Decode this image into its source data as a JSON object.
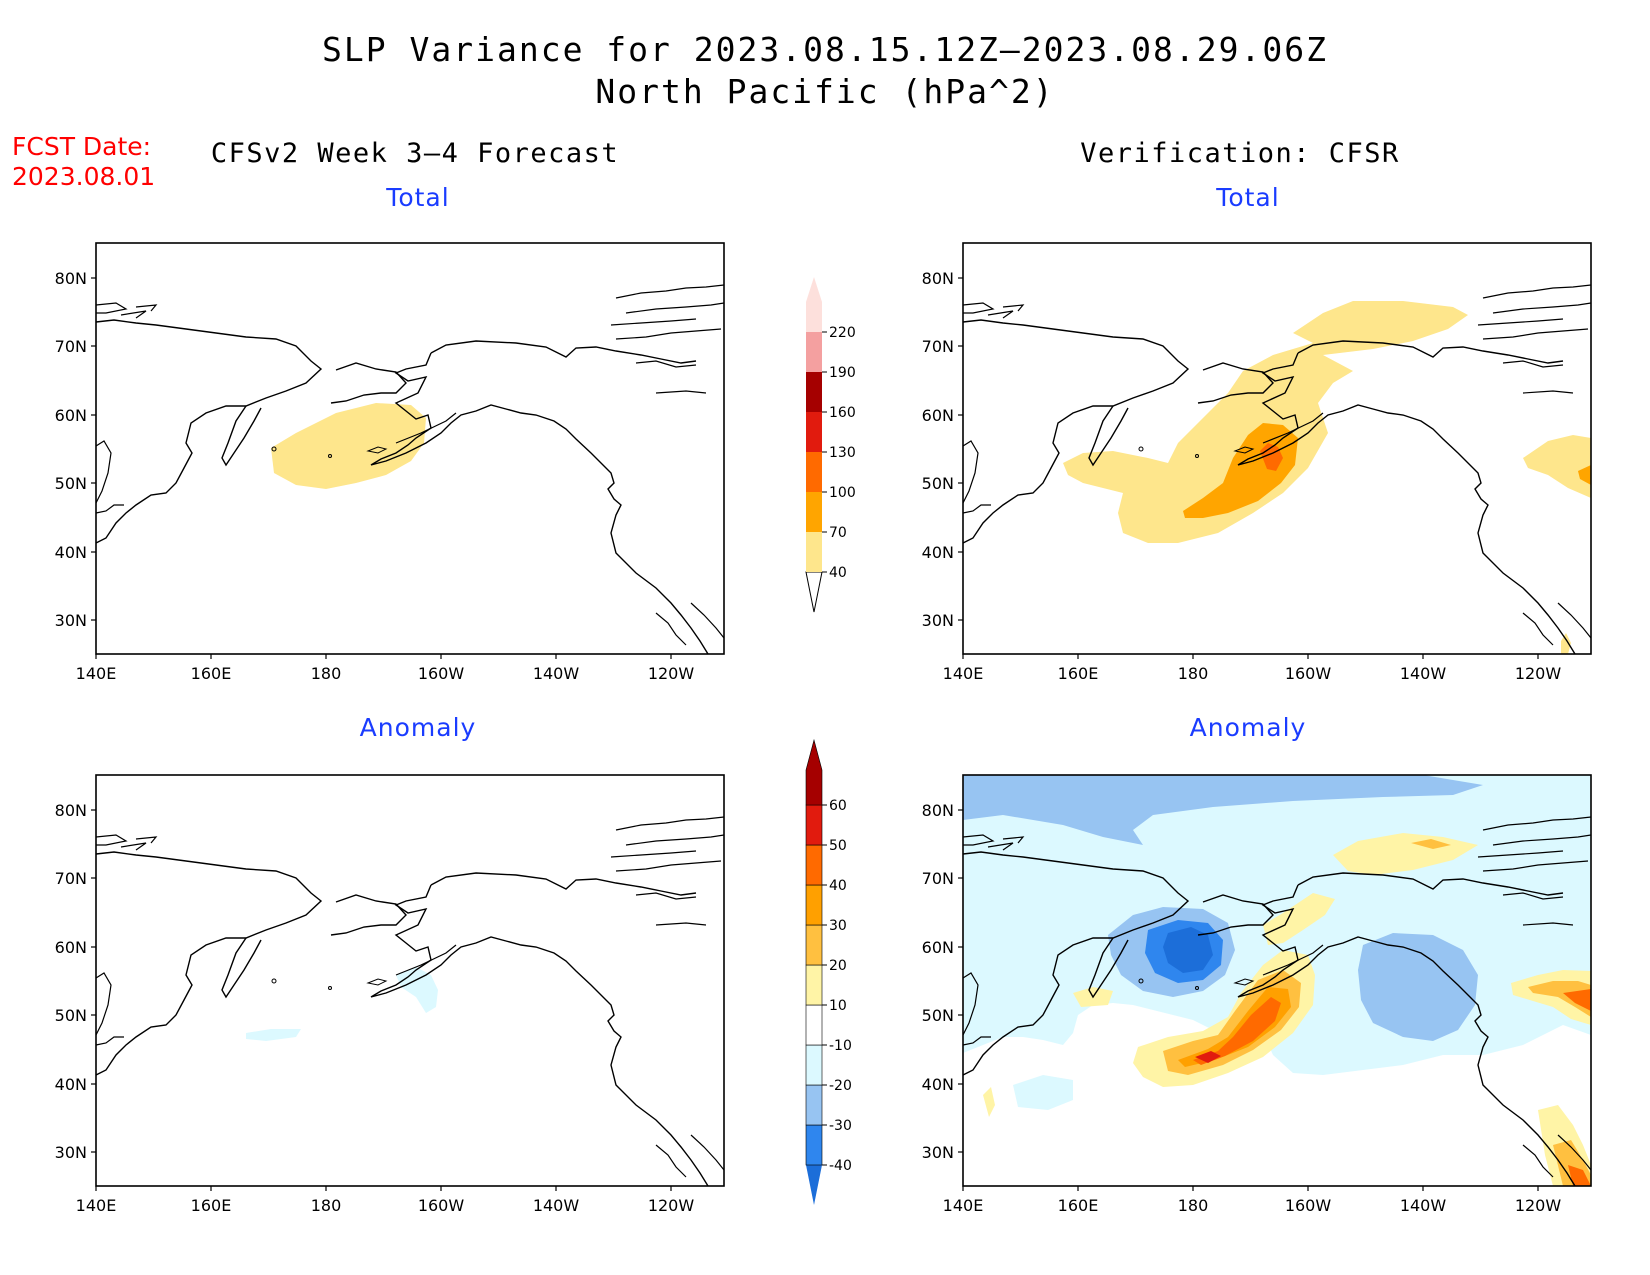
{
  "title_line1": "SLP Variance for 2023.08.15.12Z–2023.08.29.06Z",
  "title_line2": "North Pacific (hPa^2)",
  "fcst_date_label": "FCST Date:",
  "fcst_date_value": "2023.08.01",
  "left_column_header": "CFSv2 Week 3–4 Forecast",
  "right_column_header": "Verification: CFSR",
  "panels": {
    "top_left_title": "Total",
    "top_right_title": "Total",
    "bottom_left_title": "Anomaly",
    "bottom_right_title": "Anomaly"
  },
  "axes": {
    "lat_labels": [
      "80N",
      "70N",
      "60N",
      "50N",
      "40N",
      "30N"
    ],
    "lon_labels": [
      "140E",
      "160E",
      "180",
      "160W",
      "140W",
      "120W"
    ]
  },
  "total_colorbar": {
    "labels": [
      "40",
      "70",
      "100",
      "130",
      "160",
      "190",
      "220"
    ],
    "colors": [
      "#fee68c",
      "#ffa500",
      "#ff6a00",
      "#e11b0e",
      "#a50000",
      "#f4a0a0",
      "#fde0dc"
    ]
  },
  "anomaly_colorbar": {
    "labels": [
      "-40",
      "-30",
      "-20",
      "-10",
      "10",
      "20",
      "30",
      "40",
      "50",
      "60"
    ],
    "colors": [
      "#1c6ed9",
      "#2f86ee",
      "#97c4f2",
      "#dcf9ff",
      "#ffffff",
      "#fff4a6",
      "#ffc040",
      "#ffa000",
      "#ff6a00",
      "#e11b0e",
      "#a50000"
    ]
  }
}
